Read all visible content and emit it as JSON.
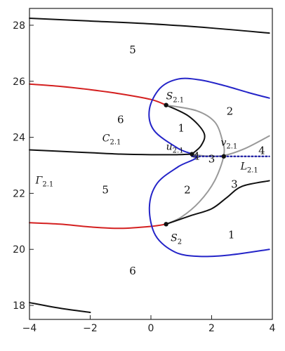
{
  "chart_data": {
    "type": "line",
    "title": "",
    "xlabel": "",
    "ylabel": "",
    "xlim": [
      -4,
      4
    ],
    "ylim": [
      17.5,
      28.6
    ],
    "x_ticks": [
      -4,
      -2,
      0,
      2,
      4
    ],
    "y_ticks": [
      18,
      20,
      22,
      24,
      26,
      28
    ],
    "grid": false,
    "colors": {
      "black": "#111111",
      "red": "#d42020",
      "blue": "#2424c8",
      "gray": "#999999",
      "dotted_blue": "#1a1aa0"
    },
    "series": [
      {
        "color": "black",
        "style": "solid",
        "points": [
          [
            -4,
            28.25
          ],
          [
            -2,
            28.15
          ],
          [
            0,
            28.05
          ],
          [
            2,
            27.9
          ],
          [
            3.9,
            27.72
          ]
        ]
      },
      {
        "color": "red",
        "style": "solid",
        "points": [
          [
            -4,
            25.9
          ],
          [
            -3,
            25.82
          ],
          [
            -2,
            25.7
          ],
          [
            -1,
            25.55
          ],
          [
            0,
            25.35
          ],
          [
            0.5,
            25.15
          ]
        ]
      },
      {
        "color": "black",
        "style": "solid",
        "points": [
          [
            -4,
            23.55
          ],
          [
            -3,
            23.5
          ],
          [
            -2,
            23.45
          ],
          [
            -1,
            23.4
          ],
          [
            0,
            23.38
          ],
          [
            0.8,
            23.38
          ],
          [
            1.35,
            23.4
          ]
        ]
      },
      {
        "color": "red",
        "style": "solid",
        "points": [
          [
            -4,
            20.95
          ],
          [
            -3,
            20.9
          ],
          [
            -2,
            20.8
          ],
          [
            -1,
            20.75
          ],
          [
            0,
            20.82
          ],
          [
            0.5,
            20.9
          ]
        ]
      },
      {
        "color": "black",
        "style": "solid",
        "points": [
          [
            -4,
            18.1
          ],
          [
            -3,
            17.9
          ],
          [
            -2,
            17.75
          ]
        ]
      },
      {
        "color": "blue",
        "style": "solid",
        "points": [
          [
            3.9,
            25.4
          ],
          [
            3.2,
            25.6
          ],
          [
            2.4,
            25.85
          ],
          [
            1.6,
            26.05
          ],
          [
            0.9,
            26.08
          ],
          [
            0.3,
            25.75
          ],
          [
            -0.05,
            25.0
          ],
          [
            0.1,
            24.25
          ],
          [
            0.9,
            23.6
          ],
          [
            1.5,
            23.3
          ],
          [
            0.9,
            22.95
          ],
          [
            0.2,
            22.35
          ],
          [
            -0.05,
            21.5
          ],
          [
            0.15,
            20.5
          ],
          [
            0.8,
            19.9
          ],
          [
            1.6,
            19.75
          ],
          [
            2.6,
            19.8
          ],
          [
            3.9,
            20.0
          ]
        ]
      },
      {
        "color": "black",
        "style": "solid",
        "points": [
          [
            0.5,
            25.15
          ],
          [
            1.25,
            24.75
          ],
          [
            1.75,
            24.15
          ],
          [
            1.65,
            23.7
          ],
          [
            1.35,
            23.4
          ]
        ]
      },
      {
        "color": "gray",
        "style": "solid",
        "points": [
          [
            0.5,
            25.15
          ],
          [
            1.5,
            24.95
          ],
          [
            2.1,
            24.55
          ],
          [
            2.35,
            23.9
          ],
          [
            2.4,
            23.35
          ],
          [
            2.1,
            22.45
          ],
          [
            1.6,
            21.7
          ],
          [
            1.0,
            21.15
          ],
          [
            0.5,
            20.9
          ]
        ]
      },
      {
        "color": "gray",
        "style": "solid",
        "points": [
          [
            1.35,
            23.4
          ],
          [
            1.8,
            23.33
          ],
          [
            2.4,
            23.35
          ],
          [
            3.1,
            23.6
          ],
          [
            3.9,
            24.05
          ]
        ]
      },
      {
        "color": "black",
        "style": "solid",
        "points": [
          [
            0.5,
            20.9
          ],
          [
            1.3,
            21.2
          ],
          [
            2.0,
            21.45
          ],
          [
            2.5,
            21.85
          ],
          [
            3.0,
            22.25
          ],
          [
            3.9,
            22.45
          ]
        ]
      },
      {
        "color": "dotted_blue",
        "style": "dotted",
        "points": [
          [
            1.35,
            23.32
          ],
          [
            3.9,
            23.32
          ]
        ]
      }
    ],
    "points": [
      {
        "x": 0.5,
        "y": 25.15
      },
      {
        "x": 1.35,
        "y": 23.4
      },
      {
        "x": 2.4,
        "y": 23.32
      },
      {
        "x": 0.5,
        "y": 20.9
      }
    ],
    "region_labels": [
      {
        "text": "5",
        "x": -0.6,
        "y": 27.0
      },
      {
        "text": "6",
        "x": -1.0,
        "y": 24.5
      },
      {
        "text": "1",
        "x": 1.0,
        "y": 24.2
      },
      {
        "text": "2",
        "x": 2.6,
        "y": 24.8
      },
      {
        "text": "5",
        "x": -1.5,
        "y": 22.0
      },
      {
        "text": "2",
        "x": 1.2,
        "y": 22.0
      },
      {
        "text": "3",
        "x": 2.0,
        "y": 23.1
      },
      {
        "text": "4",
        "x": 1.5,
        "y": 23.2
      },
      {
        "text": "3",
        "x": 2.75,
        "y": 22.2
      },
      {
        "text": "4",
        "x": 3.65,
        "y": 23.4
      },
      {
        "text": "1",
        "x": 2.65,
        "y": 20.4
      },
      {
        "text": "6",
        "x": -0.6,
        "y": 19.1
      }
    ],
    "annotations": [
      {
        "main": "S",
        "sub": "2.1",
        "x": 0.5,
        "y": 25.35
      },
      {
        "main": "C",
        "sub": "2.1",
        "x": -1.6,
        "y": 23.85
      },
      {
        "main": "u",
        "sub": "2.1",
        "x": 0.5,
        "y": 23.55
      },
      {
        "main": "v",
        "sub": "2.1",
        "x": 2.3,
        "y": 23.7
      },
      {
        "main": "Γ",
        "sub": "2.1",
        "x": -3.8,
        "y": 22.35
      },
      {
        "main": "L",
        "sub": "2.1",
        "x": 2.95,
        "y": 22.85
      },
      {
        "main": "S",
        "sub": "2",
        "x": 0.65,
        "y": 20.3
      }
    ]
  }
}
